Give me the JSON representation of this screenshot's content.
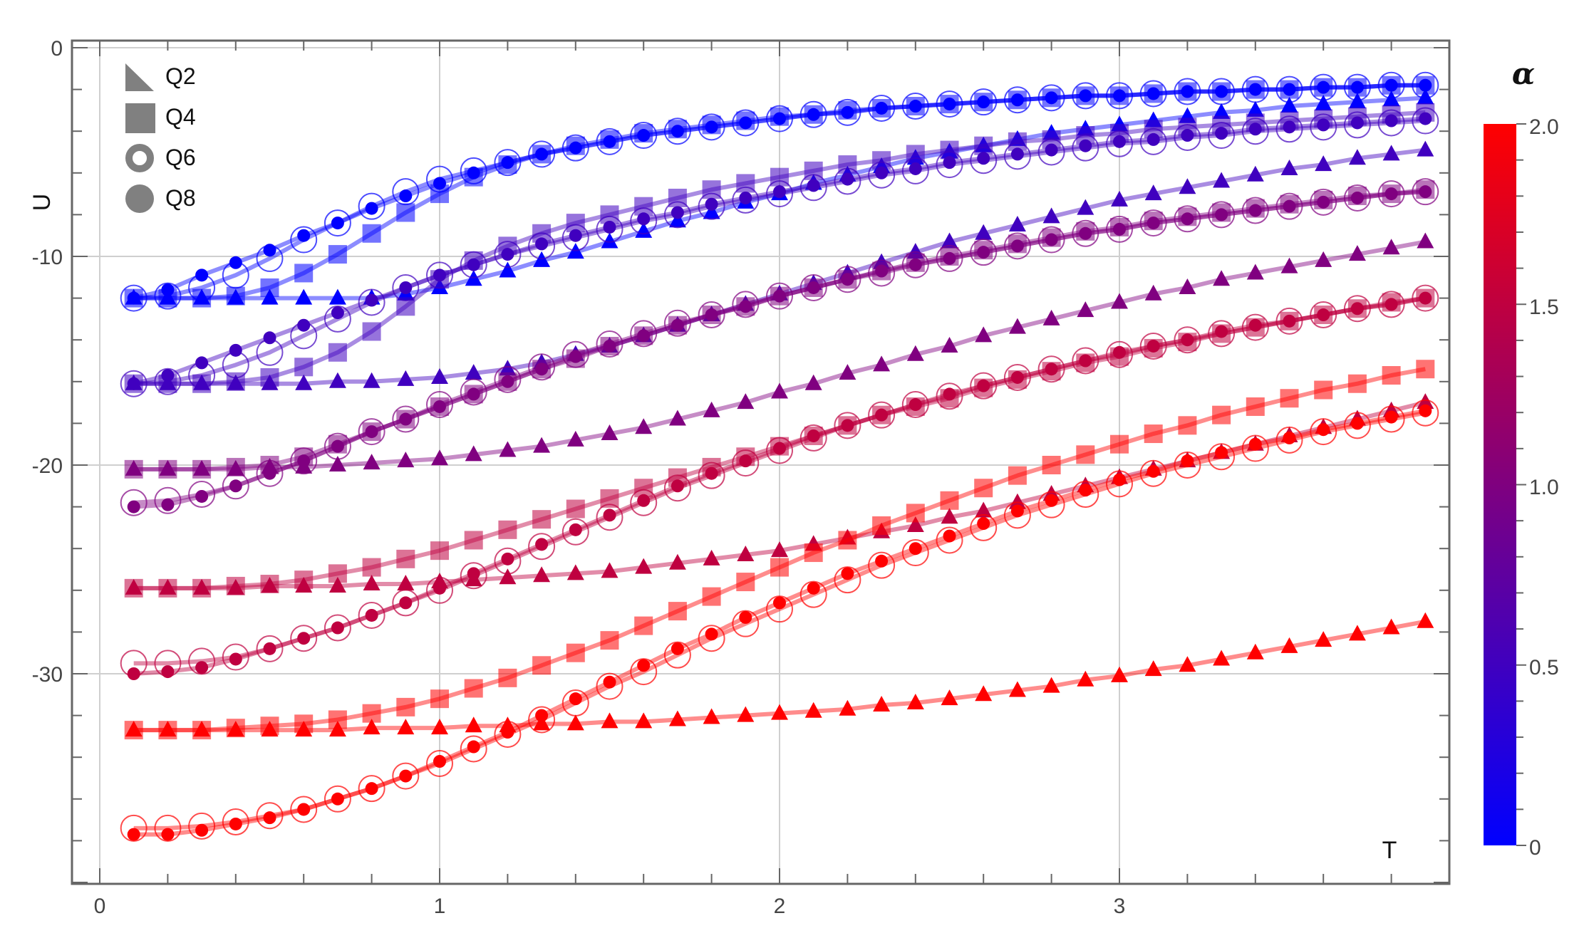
{
  "chart_data": {
    "type": "line",
    "title": "",
    "xlabel": "T",
    "ylabel": "U",
    "xlim": [
      -0.1,
      3.98
    ],
    "ylim": [
      -40.2,
      1.0
    ],
    "x_ticks": [
      0,
      1,
      2,
      3
    ],
    "y_ticks": [
      0,
      -10,
      -20,
      -30
    ],
    "grid": true,
    "legend": {
      "position": "top-left",
      "entries": [
        {
          "label": "Q2",
          "marker": "triangle"
        },
        {
          "label": "Q4",
          "marker": "square"
        },
        {
          "label": "Q6",
          "marker": "open-circle"
        },
        {
          "label": "Q8",
          "marker": "filled-circle"
        }
      ]
    },
    "colorbar": {
      "title": "α",
      "range": [
        0,
        2.0
      ],
      "tick_labels": [
        "0",
        "0.5",
        "1.0",
        "1.5",
        "2.0"
      ],
      "color_low": "#0000ff",
      "color_high": "#ff0000"
    },
    "x": [
      0.1,
      0.2,
      0.3,
      0.4,
      0.5,
      0.6,
      0.7,
      0.8,
      0.9,
      1.0,
      1.1,
      1.2,
      1.3,
      1.4,
      1.5,
      1.6,
      1.7,
      1.8,
      1.9,
      2.0,
      2.1,
      2.2,
      2.3,
      2.4,
      2.5,
      2.6,
      2.7,
      2.8,
      2.9,
      3.0,
      3.1,
      3.2,
      3.3,
      3.4,
      3.5,
      3.6,
      3.7,
      3.8,
      3.9
    ],
    "series": [
      {
        "name": "Q2 α=0",
        "alpha": 0,
        "marker": "triangle",
        "values": [
          -12,
          -12,
          -12,
          -12,
          -12,
          -12,
          -12,
          -12,
          -11.8,
          -11.5,
          -11.1,
          -10.7,
          -10.2,
          -9.8,
          -9.3,
          -8.8,
          -8.3,
          -7.9,
          -7.4,
          -7.0,
          -6.5,
          -6.1,
          -5.7,
          -5.3,
          -5.0,
          -4.7,
          -4.4,
          -4.1,
          -3.9,
          -3.7,
          -3.5,
          -3.3,
          -3.1,
          -3.0,
          -2.8,
          -2.7,
          -2.6,
          -2.5,
          -2.4
        ]
      },
      {
        "name": "Q4 α=0",
        "alpha": 0,
        "marker": "square",
        "values": [
          -12,
          -12,
          -12,
          -11.9,
          -11.5,
          -10.8,
          -9.9,
          -8.9,
          -7.9,
          -7.0,
          -6.2,
          -5.6,
          -5.1,
          -4.7,
          -4.4,
          -4.1,
          -3.9,
          -3.7,
          -3.5,
          -3.3,
          -3.2,
          -3.0,
          -2.9,
          -2.8,
          -2.7,
          -2.6,
          -2.5,
          -2.4,
          -2.3,
          -2.3,
          -2.2,
          -2.1,
          -2.1,
          -2.0,
          -2.0,
          -1.9,
          -1.9,
          -1.8,
          -1.8
        ]
      },
      {
        "name": "Q6 α=0",
        "alpha": 0,
        "marker": "open-circle",
        "values": [
          -12,
          -11.9,
          -11.5,
          -10.9,
          -10.1,
          -9.2,
          -8.4,
          -7.6,
          -6.9,
          -6.3,
          -5.9,
          -5.5,
          -5.1,
          -4.8,
          -4.5,
          -4.2,
          -4.0,
          -3.8,
          -3.6,
          -3.4,
          -3.2,
          -3.1,
          -2.9,
          -2.8,
          -2.7,
          -2.6,
          -2.5,
          -2.4,
          -2.3,
          -2.3,
          -2.2,
          -2.1,
          -2.1,
          -2.0,
          -2.0,
          -1.9,
          -1.9,
          -1.8,
          -1.8
        ]
      },
      {
        "name": "Q8 α=0",
        "alpha": 0,
        "marker": "filled-circle",
        "values": [
          -12,
          -11.6,
          -10.9,
          -10.3,
          -9.7,
          -9.0,
          -8.4,
          -7.7,
          -7.1,
          -6.5,
          -6.0,
          -5.5,
          -5.1,
          -4.8,
          -4.5,
          -4.2,
          -4.0,
          -3.8,
          -3.6,
          -3.4,
          -3.2,
          -3.1,
          -2.9,
          -2.8,
          -2.7,
          -2.6,
          -2.5,
          -2.4,
          -2.3,
          -2.3,
          -2.2,
          -2.1,
          -2.1,
          -2.0,
          -2.0,
          -1.9,
          -1.9,
          -1.8,
          -1.8
        ]
      },
      {
        "name": "Q2 α=0.5",
        "alpha": 0.5,
        "marker": "triangle",
        "values": [
          -16.1,
          -16.1,
          -16.1,
          -16.1,
          -16.1,
          -16.1,
          -16.0,
          -16.0,
          -15.9,
          -15.8,
          -15.6,
          -15.4,
          -15.1,
          -14.7,
          -14.3,
          -13.8,
          -13.3,
          -12.8,
          -12.3,
          -11.8,
          -11.3,
          -10.8,
          -10.3,
          -9.8,
          -9.3,
          -8.9,
          -8.5,
          -8.1,
          -7.7,
          -7.3,
          -7.0,
          -6.7,
          -6.4,
          -6.1,
          -5.8,
          -5.6,
          -5.3,
          -5.1,
          -4.9
        ]
      },
      {
        "name": "Q4 α=0.5",
        "alpha": 0.5,
        "marker": "square",
        "values": [
          -16.1,
          -16.1,
          -16.1,
          -16.0,
          -15.8,
          -15.3,
          -14.6,
          -13.6,
          -12.4,
          -11.1,
          -10.2,
          -9.5,
          -8.9,
          -8.4,
          -8.0,
          -7.6,
          -7.2,
          -6.8,
          -6.5,
          -6.2,
          -5.9,
          -5.6,
          -5.4,
          -5.1,
          -4.9,
          -4.7,
          -4.5,
          -4.4,
          -4.2,
          -4.1,
          -3.9,
          -3.8,
          -3.7,
          -3.6,
          -3.5,
          -3.4,
          -3.3,
          -3.2,
          -3.1
        ]
      },
      {
        "name": "Q6 α=0.5",
        "alpha": 0.5,
        "marker": "open-circle",
        "values": [
          -16.1,
          -16.0,
          -15.7,
          -15.2,
          -14.6,
          -13.8,
          -13.0,
          -12.2,
          -11.5,
          -10.9,
          -10.4,
          -9.9,
          -9.5,
          -9.1,
          -8.7,
          -8.3,
          -8.0,
          -7.6,
          -7.3,
          -7.0,
          -6.7,
          -6.4,
          -6.1,
          -5.9,
          -5.6,
          -5.4,
          -5.2,
          -5.0,
          -4.8,
          -4.6,
          -4.5,
          -4.3,
          -4.2,
          -4.0,
          -3.9,
          -3.8,
          -3.7,
          -3.6,
          -3.5
        ]
      },
      {
        "name": "Q8 α=0.5",
        "alpha": 0.5,
        "marker": "filled-circle",
        "values": [
          -16.1,
          -15.7,
          -15.1,
          -14.5,
          -13.9,
          -13.3,
          -12.7,
          -12.1,
          -11.5,
          -10.9,
          -10.4,
          -9.9,
          -9.4,
          -9.0,
          -8.6,
          -8.2,
          -7.9,
          -7.5,
          -7.2,
          -6.9,
          -6.6,
          -6.3,
          -6.0,
          -5.8,
          -5.5,
          -5.3,
          -5.1,
          -4.9,
          -4.7,
          -4.5,
          -4.4,
          -4.2,
          -4.1,
          -3.9,
          -3.8,
          -3.7,
          -3.6,
          -3.5,
          -3.4
        ]
      },
      {
        "name": "Q2 α=1.0",
        "alpha": 1.0,
        "marker": "triangle",
        "values": [
          -20.2,
          -20.2,
          -20.2,
          -20.2,
          -20.1,
          -20.1,
          -20.0,
          -19.9,
          -19.8,
          -19.7,
          -19.5,
          -19.3,
          -19.1,
          -18.8,
          -18.5,
          -18.2,
          -17.8,
          -17.4,
          -17.0,
          -16.5,
          -16.1,
          -15.6,
          -15.2,
          -14.7,
          -14.3,
          -13.8,
          -13.4,
          -13.0,
          -12.6,
          -12.2,
          -11.8,
          -11.5,
          -11.1,
          -10.8,
          -10.5,
          -10.2,
          -9.9,
          -9.6,
          -9.3
        ]
      },
      {
        "name": "Q4 α=1.0",
        "alpha": 1.0,
        "marker": "square",
        "values": [
          -20.2,
          -20.2,
          -20.2,
          -20.1,
          -20.0,
          -19.6,
          -19.0,
          -18.4,
          -17.8,
          -17.2,
          -16.6,
          -16.0,
          -15.4,
          -14.9,
          -14.3,
          -13.8,
          -13.3,
          -12.8,
          -12.4,
          -11.9,
          -11.5,
          -11.1,
          -10.7,
          -10.3,
          -10.0,
          -9.7,
          -9.4,
          -9.1,
          -8.8,
          -8.6,
          -8.3,
          -8.1,
          -7.9,
          -7.7,
          -7.5,
          -7.3,
          -7.1,
          -7.0,
          -6.8
        ]
      },
      {
        "name": "Q6 α=1.0",
        "alpha": 1.0,
        "marker": "open-circle",
        "values": [
          -21.8,
          -21.7,
          -21.4,
          -21.0,
          -20.4,
          -19.8,
          -19.1,
          -18.4,
          -17.8,
          -17.1,
          -16.5,
          -15.9,
          -15.3,
          -14.7,
          -14.2,
          -13.7,
          -13.2,
          -12.8,
          -12.3,
          -11.9,
          -11.5,
          -11.1,
          -10.8,
          -10.4,
          -10.1,
          -9.8,
          -9.5,
          -9.2,
          -8.9,
          -8.7,
          -8.4,
          -8.2,
          -8.0,
          -7.8,
          -7.6,
          -7.4,
          -7.2,
          -7.0,
          -6.9
        ]
      },
      {
        "name": "Q8 α=1.0",
        "alpha": 1.0,
        "marker": "filled-circle",
        "values": [
          -22.0,
          -21.9,
          -21.5,
          -21.0,
          -20.4,
          -19.8,
          -19.1,
          -18.4,
          -17.8,
          -17.2,
          -16.6,
          -16.0,
          -15.4,
          -14.8,
          -14.3,
          -13.8,
          -13.3,
          -12.8,
          -12.4,
          -11.9,
          -11.5,
          -11.1,
          -10.7,
          -10.4,
          -10.1,
          -9.8,
          -9.5,
          -9.2,
          -8.9,
          -8.7,
          -8.4,
          -8.2,
          -8.0,
          -7.8,
          -7.6,
          -7.4,
          -7.2,
          -7.0,
          -6.9
        ]
      },
      {
        "name": "Q2 α=1.5",
        "alpha": 1.5,
        "marker": "triangle",
        "values": [
          -25.9,
          -25.9,
          -25.9,
          -25.9,
          -25.8,
          -25.8,
          -25.8,
          -25.7,
          -25.7,
          -25.6,
          -25.5,
          -25.4,
          -25.3,
          -25.2,
          -25.1,
          -24.9,
          -24.7,
          -24.5,
          -24.3,
          -24.1,
          -23.8,
          -23.5,
          -23.2,
          -22.9,
          -22.5,
          -22.2,
          -21.8,
          -21.4,
          -21.0,
          -20.6,
          -20.2,
          -19.8,
          -19.4,
          -19.0,
          -18.6,
          -18.2,
          -17.8,
          -17.4,
          -17.0
        ]
      },
      {
        "name": "Q4 α=1.5",
        "alpha": 1.5,
        "marker": "square",
        "values": [
          -25.9,
          -25.9,
          -25.9,
          -25.8,
          -25.7,
          -25.5,
          -25.2,
          -24.9,
          -24.5,
          -24.1,
          -23.6,
          -23.1,
          -22.6,
          -22.1,
          -21.6,
          -21.1,
          -20.6,
          -20.1,
          -19.6,
          -19.1,
          -18.6,
          -18.1,
          -17.6,
          -17.2,
          -16.8,
          -16.3,
          -15.9,
          -15.5,
          -15.1,
          -14.8,
          -14.4,
          -14.1,
          -13.7,
          -13.4,
          -13.1,
          -12.8,
          -12.5,
          -12.2,
          -12.0
        ]
      },
      {
        "name": "Q6 α=1.5",
        "alpha": 1.5,
        "marker": "open-circle",
        "values": [
          -29.5,
          -29.5,
          -29.4,
          -29.2,
          -28.8,
          -28.3,
          -27.8,
          -27.2,
          -26.6,
          -26.0,
          -25.3,
          -24.6,
          -23.9,
          -23.2,
          -22.5,
          -21.8,
          -21.1,
          -20.5,
          -19.9,
          -19.3,
          -18.7,
          -18.1,
          -17.6,
          -17.1,
          -16.7,
          -16.2,
          -15.8,
          -15.4,
          -15.0,
          -14.7,
          -14.3,
          -14.0,
          -13.7,
          -13.4,
          -13.1,
          -12.8,
          -12.5,
          -12.3,
          -12.0
        ]
      },
      {
        "name": "Q8 α=1.5",
        "alpha": 1.5,
        "marker": "filled-circle",
        "values": [
          -30.0,
          -29.9,
          -29.7,
          -29.3,
          -28.8,
          -28.3,
          -27.8,
          -27.2,
          -26.6,
          -25.9,
          -25.2,
          -24.5,
          -23.8,
          -23.1,
          -22.4,
          -21.7,
          -21.0,
          -20.4,
          -19.8,
          -19.2,
          -18.6,
          -18.1,
          -17.6,
          -17.1,
          -16.6,
          -16.2,
          -15.8,
          -15.4,
          -15.0,
          -14.6,
          -14.3,
          -14.0,
          -13.6,
          -13.3,
          -13.1,
          -12.8,
          -12.5,
          -12.3,
          -12.0
        ]
      },
      {
        "name": "Q2 α=2.0",
        "alpha": 2.0,
        "marker": "triangle",
        "values": [
          -32.7,
          -32.7,
          -32.7,
          -32.7,
          -32.7,
          -32.7,
          -32.7,
          -32.6,
          -32.6,
          -32.6,
          -32.5,
          -32.5,
          -32.4,
          -32.4,
          -32.3,
          -32.3,
          -32.2,
          -32.1,
          -32.0,
          -31.9,
          -31.8,
          -31.7,
          -31.5,
          -31.4,
          -31.2,
          -31.0,
          -30.8,
          -30.6,
          -30.3,
          -30.1,
          -29.8,
          -29.6,
          -29.3,
          -29.0,
          -28.7,
          -28.4,
          -28.1,
          -27.8,
          -27.5
        ]
      },
      {
        "name": "Q4 α=2.0",
        "alpha": 2.0,
        "marker": "square",
        "values": [
          -32.7,
          -32.7,
          -32.7,
          -32.6,
          -32.5,
          -32.4,
          -32.2,
          -31.9,
          -31.6,
          -31.2,
          -30.7,
          -30.2,
          -29.6,
          -29.0,
          -28.4,
          -27.7,
          -27.0,
          -26.3,
          -25.6,
          -24.9,
          -24.2,
          -23.6,
          -22.9,
          -22.3,
          -21.7,
          -21.1,
          -20.5,
          -20.0,
          -19.5,
          -19.0,
          -18.5,
          -18.1,
          -17.6,
          -17.2,
          -16.8,
          -16.4,
          -16.1,
          -15.7,
          -15.4
        ]
      },
      {
        "name": "Q6 α=2.0",
        "alpha": 2.0,
        "marker": "open-circle",
        "values": [
          -37.4,
          -37.4,
          -37.3,
          -37.1,
          -36.8,
          -36.5,
          -36.0,
          -35.5,
          -34.9,
          -34.3,
          -33.6,
          -32.9,
          -32.2,
          -31.4,
          -30.6,
          -29.9,
          -29.1,
          -28.3,
          -27.6,
          -26.9,
          -26.2,
          -25.5,
          -24.8,
          -24.2,
          -23.6,
          -23.0,
          -22.4,
          -21.9,
          -21.4,
          -20.9,
          -20.4,
          -20.0,
          -19.6,
          -19.2,
          -18.8,
          -18.4,
          -18.1,
          -17.8,
          -17.5
        ]
      },
      {
        "name": "Q8 α=2.0",
        "alpha": 2.0,
        "marker": "filled-circle",
        "values": [
          -37.7,
          -37.7,
          -37.5,
          -37.2,
          -36.9,
          -36.5,
          -36.0,
          -35.5,
          -34.9,
          -34.2,
          -33.5,
          -32.8,
          -32.0,
          -31.2,
          -30.4,
          -29.6,
          -28.8,
          -28.1,
          -27.3,
          -26.6,
          -25.9,
          -25.2,
          -24.6,
          -24.0,
          -23.4,
          -22.8,
          -22.2,
          -21.7,
          -21.2,
          -20.7,
          -20.3,
          -19.8,
          -19.4,
          -19.0,
          -18.7,
          -18.3,
          -18.0,
          -17.7,
          -17.4
        ]
      }
    ]
  },
  "labels": {
    "x_axis": "T",
    "y_axis": "U",
    "colorbar_title": "α",
    "x_ticks": [
      "0",
      "1",
      "2",
      "3"
    ],
    "y_ticks": [
      "0",
      "-10",
      "-20",
      "-30"
    ],
    "colorbar_ticks": [
      "0",
      "0.5",
      "1.0",
      "1.5",
      "2.0"
    ],
    "legend": [
      "Q2",
      "Q4",
      "Q6",
      "Q8"
    ]
  }
}
